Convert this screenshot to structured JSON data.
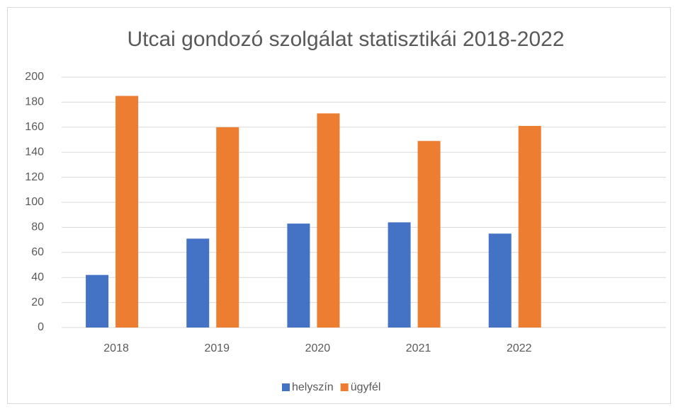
{
  "chart_data": {
    "type": "bar",
    "title": "Utcai gondozó szolgálat statisztikái 2018-2022",
    "categories": [
      "2018",
      "2019",
      "2020",
      "2021",
      "2022",
      null
    ],
    "series": [
      {
        "name": "helyszín",
        "color": "#4472c4",
        "values": [
          42,
          71,
          83,
          84,
          75,
          null
        ]
      },
      {
        "name": "ügyfél",
        "color": "#ed7d31",
        "values": [
          185,
          160,
          171,
          149,
          161,
          null
        ]
      }
    ],
    "ylim": [
      0,
      200
    ],
    "yticks": [
      0,
      20,
      40,
      60,
      80,
      100,
      120,
      140,
      160,
      180,
      200
    ],
    "grid": true,
    "legend": "bottom"
  }
}
